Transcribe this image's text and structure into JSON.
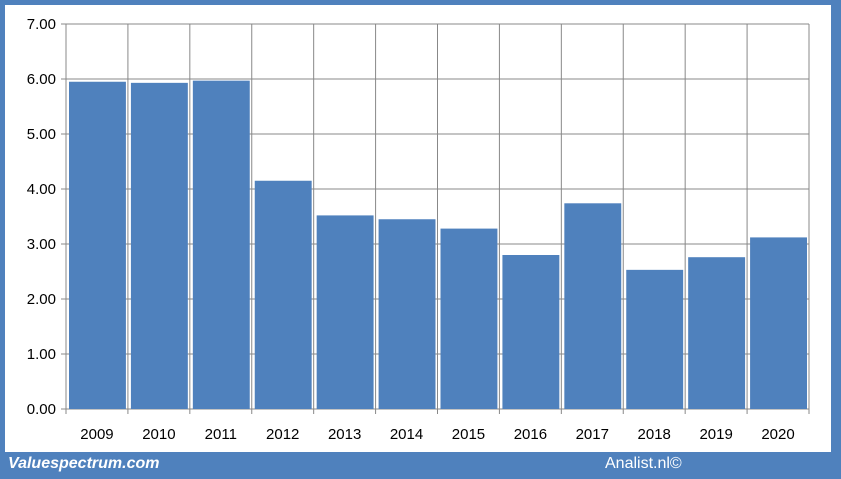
{
  "chart_data": {
    "type": "bar",
    "categories": [
      "2009",
      "2010",
      "2011",
      "2012",
      "2013",
      "2014",
      "2015",
      "2016",
      "2017",
      "2018",
      "2019",
      "2020"
    ],
    "values": [
      5.95,
      5.93,
      5.97,
      4.15,
      3.52,
      3.45,
      3.28,
      2.8,
      3.74,
      2.53,
      2.76,
      3.12
    ],
    "ylim": [
      0,
      7
    ],
    "yticks": [
      "0.00",
      "1.00",
      "2.00",
      "3.00",
      "4.00",
      "5.00",
      "6.00",
      "7.00"
    ],
    "title": "",
    "xlabel": "",
    "ylabel": "",
    "grid": true,
    "bar_color": "#4f81bd",
    "legend": "none"
  },
  "footer": {
    "left_text": "Valuespectrum.com",
    "right_text": "Analist.nl©"
  },
  "colors": {
    "frame": "#4f81bd",
    "bar": "#4f81bd",
    "grid": "#888888"
  }
}
